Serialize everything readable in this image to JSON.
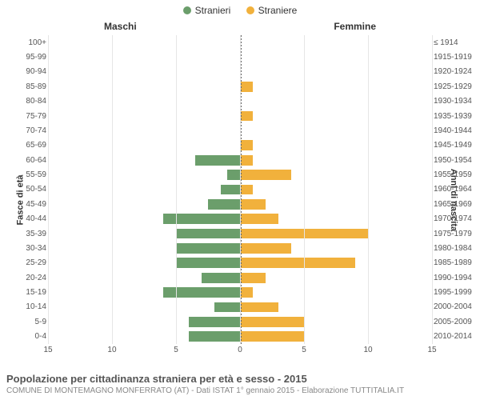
{
  "legend": {
    "male": {
      "label": "Stranieri",
      "color": "#6b9e6b"
    },
    "female": {
      "label": "Straniere",
      "color": "#f1b13c"
    }
  },
  "column_headers": {
    "left": "Maschi",
    "right": "Femmine"
  },
  "axis_titles": {
    "left": "Fasce di età",
    "right": "Anni di nascita"
  },
  "x_axis": {
    "max": 15,
    "ticks": [
      15,
      10,
      5,
      0,
      5,
      10,
      15
    ]
  },
  "footer": {
    "title": "Popolazione per cittadinanza straniera per età e sesso - 2015",
    "subtitle": "COMUNE DI MONTEMAGNO MONFERRATO (AT) - Dati ISTAT 1° gennaio 2015 - Elaborazione TUTTITALIA.IT"
  },
  "style": {
    "background_color": "#ffffff",
    "grid_color": "#e5e5e5",
    "center_line_color": "#666666",
    "tick_font_size": 10,
    "legend_font_size": 12,
    "title_color": "#555555",
    "subtitle_color": "#888888"
  },
  "rows": [
    {
      "age": "100+",
      "birth": "≤ 1914",
      "m": 0,
      "f": 0
    },
    {
      "age": "95-99",
      "birth": "1915-1919",
      "m": 0,
      "f": 0
    },
    {
      "age": "90-94",
      "birth": "1920-1924",
      "m": 0,
      "f": 0
    },
    {
      "age": "85-89",
      "birth": "1925-1929",
      "m": 0,
      "f": 1
    },
    {
      "age": "80-84",
      "birth": "1930-1934",
      "m": 0,
      "f": 0
    },
    {
      "age": "75-79",
      "birth": "1935-1939",
      "m": 0,
      "f": 1
    },
    {
      "age": "70-74",
      "birth": "1940-1944",
      "m": 0,
      "f": 0
    },
    {
      "age": "65-69",
      "birth": "1945-1949",
      "m": 0,
      "f": 1
    },
    {
      "age": "60-64",
      "birth": "1950-1954",
      "m": 3.5,
      "f": 1
    },
    {
      "age": "55-59",
      "birth": "1955-1959",
      "m": 1,
      "f": 4
    },
    {
      "age": "50-54",
      "birth": "1960-1964",
      "m": 1.5,
      "f": 1
    },
    {
      "age": "45-49",
      "birth": "1965-1969",
      "m": 2.5,
      "f": 2
    },
    {
      "age": "40-44",
      "birth": "1970-1974",
      "m": 6,
      "f": 3
    },
    {
      "age": "35-39",
      "birth": "1975-1979",
      "m": 5,
      "f": 10
    },
    {
      "age": "30-34",
      "birth": "1980-1984",
      "m": 5,
      "f": 4
    },
    {
      "age": "25-29",
      "birth": "1985-1989",
      "m": 5,
      "f": 9
    },
    {
      "age": "20-24",
      "birth": "1990-1994",
      "m": 3,
      "f": 2
    },
    {
      "age": "15-19",
      "birth": "1995-1999",
      "m": 6,
      "f": 1
    },
    {
      "age": "10-14",
      "birth": "2000-2004",
      "m": 2,
      "f": 3
    },
    {
      "age": "5-9",
      "birth": "2005-2009",
      "m": 4,
      "f": 5
    },
    {
      "age": "0-4",
      "birth": "2010-2014",
      "m": 4,
      "f": 5
    }
  ]
}
